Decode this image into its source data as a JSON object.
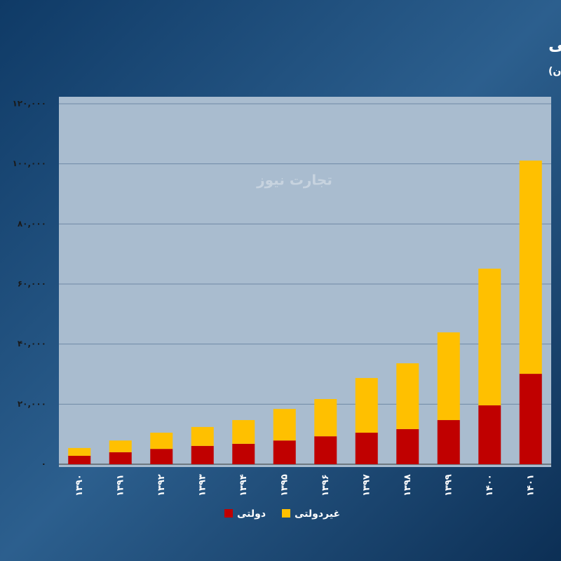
{
  "chart_data": {
    "type": "stacked_bar",
    "title": "سهم بیمه‌های دولتی و غیردولتی از خسارت‌های پرداختی",
    "subtitle": "(اعداد به میلیارد تومان)",
    "watermark": "تجارت نیوز",
    "categories": [
      "۱۳۹۰",
      "۱۳۹۱",
      "۱۳۹۲",
      "۱۳۹۳",
      "۱۳۹۴",
      "۱۳۹۵",
      "۱۳۹۶",
      "۱۳۹۷",
      "۱۳۹۸",
      "۱۳۹۹",
      "۱۴۰۰",
      "۱۴۰۱"
    ],
    "series": [
      {
        "name": "دولتی",
        "color": "#c00000",
        "values": [
          2800,
          4000,
          5100,
          6100,
          6800,
          7900,
          9300,
          10500,
          11700,
          14700,
          19600,
          30100
        ]
      },
      {
        "name": "غیردولتی",
        "color": "#ffc000",
        "values": [
          2600,
          3900,
          5400,
          6300,
          7900,
          10500,
          12400,
          18200,
          21900,
          29200,
          45500,
          71000
        ]
      }
    ],
    "ylim": [
      0,
      120000
    ],
    "yticks": [
      {
        "value": 0,
        "label": "۰"
      },
      {
        "value": 20000,
        "label": "۲۰,۰۰۰"
      },
      {
        "value": 40000,
        "label": "۴۰,۰۰۰"
      },
      {
        "value": 60000,
        "label": "۶۰,۰۰۰"
      },
      {
        "value": 80000,
        "label": "۸۰,۰۰۰"
      },
      {
        "value": 100000,
        "label": "۱۰۰,۰۰۰"
      },
      {
        "value": 120000,
        "label": "۱۲۰,۰۰۰"
      }
    ],
    "grid": true
  }
}
